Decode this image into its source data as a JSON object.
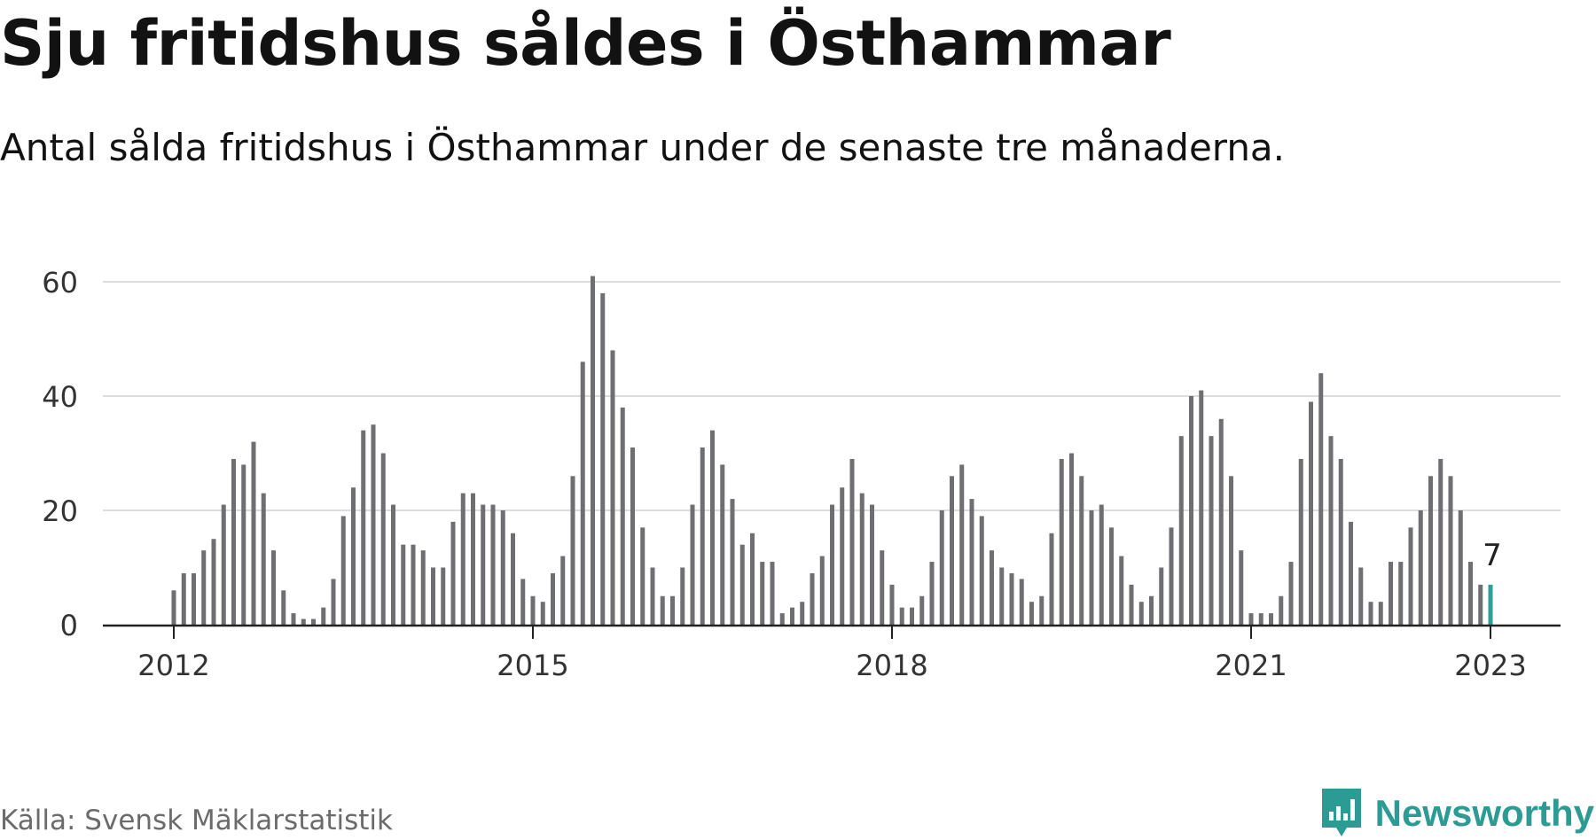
{
  "title": "Sju fritidshus såldes i Östhammar",
  "subtitle": "Antal sålda fritidshus i Östhammar under de senaste tre månaderna.",
  "source": "Källa: Svensk Mäklarstatistik",
  "brand": {
    "name": "Newsworthy",
    "logo_icon": "newsworthy-logo-icon"
  },
  "colors": {
    "bar": "#6e6e73",
    "highlight": "#2aa198",
    "grid": "#dcdcdc",
    "axis": "#222222",
    "brand": "#2c9b94"
  },
  "chart_data": {
    "type": "bar",
    "title": "Sju fritidshus såldes i Östhammar",
    "subtitle": "Antal sålda fritidshus i Östhammar under de senaste tre månaderna.",
    "xlabel": "",
    "ylabel": "",
    "ylim": [
      0,
      65
    ],
    "yticks": [
      0,
      20,
      40,
      60
    ],
    "xticks": [
      "2012",
      "2015",
      "2018",
      "2021",
      "2023"
    ],
    "grid": true,
    "x_start": "2012-01",
    "x_end": "2023-01",
    "values": [
      6,
      9,
      9,
      13,
      15,
      21,
      29,
      28,
      32,
      23,
      13,
      6,
      2,
      1,
      1,
      3,
      8,
      19,
      24,
      34,
      35,
      30,
      21,
      14,
      14,
      13,
      10,
      10,
      18,
      23,
      23,
      21,
      21,
      20,
      16,
      8,
      5,
      4,
      9,
      12,
      26,
      46,
      61,
      58,
      48,
      38,
      31,
      17,
      10,
      5,
      5,
      10,
      21,
      31,
      34,
      28,
      22,
      14,
      16,
      11,
      11,
      2,
      3,
      4,
      9,
      12,
      21,
      24,
      29,
      23,
      21,
      13,
      7,
      3,
      3,
      5,
      11,
      20,
      26,
      28,
      22,
      19,
      13,
      10,
      9,
      8,
      4,
      5,
      16,
      29,
      30,
      26,
      20,
      21,
      17,
      12,
      7,
      4,
      5,
      10,
      17,
      33,
      40,
      41,
      33,
      36,
      26,
      13,
      2,
      2,
      2,
      5,
      11,
      29,
      39,
      44,
      33,
      29,
      18,
      10,
      4,
      4,
      11,
      11,
      17,
      20,
      26,
      29,
      26,
      20,
      11,
      7,
      7
    ],
    "highlight": {
      "x": "2023-01",
      "value": 7,
      "label": "7"
    }
  }
}
